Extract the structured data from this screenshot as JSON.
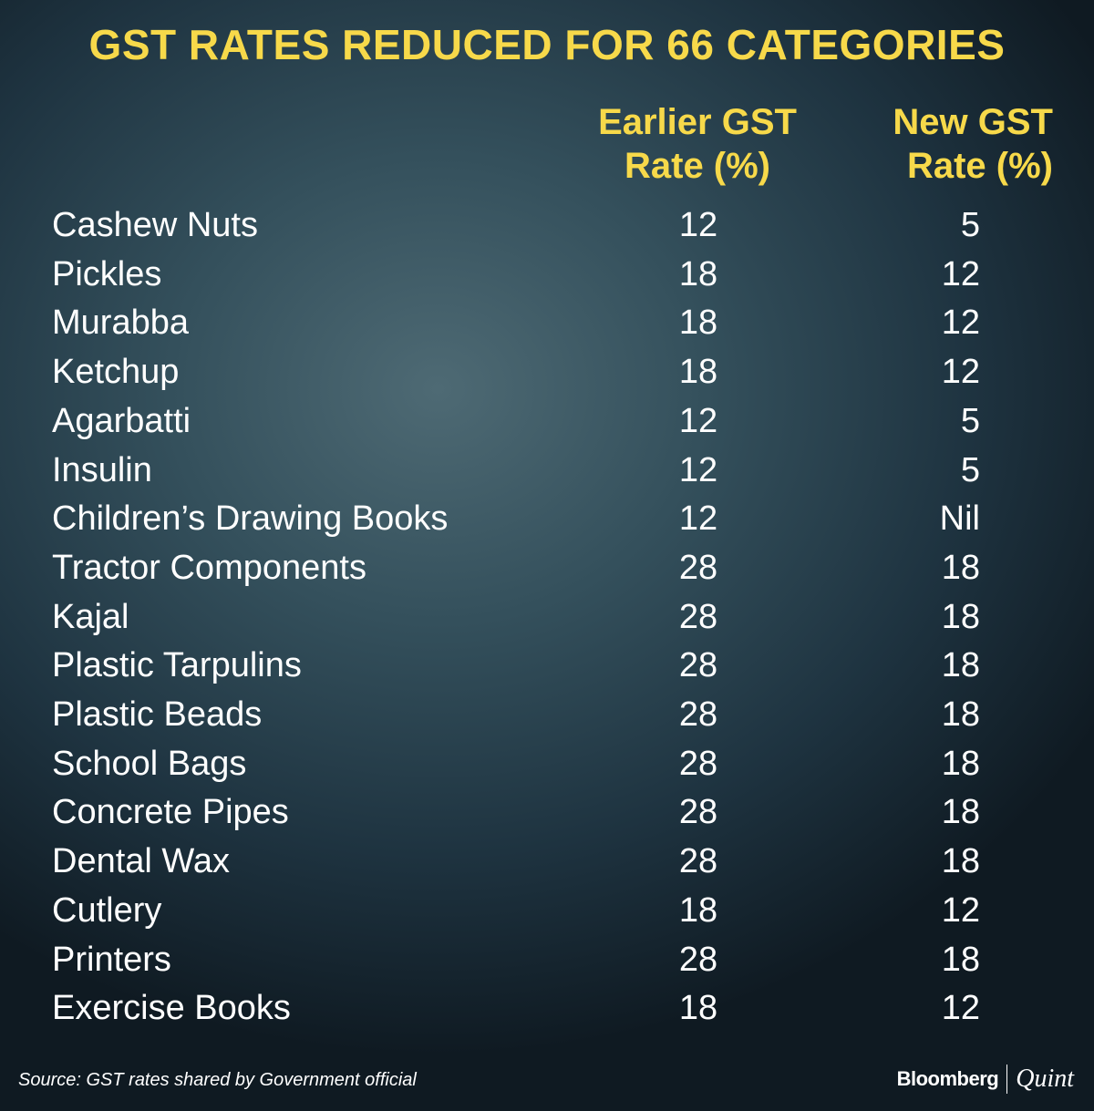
{
  "title": "GST RATES REDUCED FOR 66 CATEGORIES",
  "colors": {
    "accent": "#f7d94a",
    "text": "#ffffff",
    "background": "#2e4652"
  },
  "chart_data": {
    "type": "table",
    "title": "GST RATES REDUCED FOR 66 CATEGORIES",
    "columns": [
      "",
      "Earlier GST Rate (%)",
      "New GST Rate (%)"
    ],
    "header_lines": {
      "earlier": [
        "Earlier GST",
        "Rate (%)"
      ],
      "new": [
        "New GST",
        "Rate (%)"
      ]
    },
    "rows": [
      {
        "item": "Cashew Nuts",
        "earlier": "12",
        "new": "5"
      },
      {
        "item": "Pickles",
        "earlier": "18",
        "new": "12"
      },
      {
        "item": "Murabba",
        "earlier": "18",
        "new": "12"
      },
      {
        "item": "Ketchup",
        "earlier": "18",
        "new": "12"
      },
      {
        "item": "Agarbatti",
        "earlier": "12",
        "new": "5"
      },
      {
        "item": "Insulin",
        "earlier": "12",
        "new": "5"
      },
      {
        "item": "Children’s Drawing Books",
        "earlier": "12",
        "new": "Nil"
      },
      {
        "item": "Tractor Components",
        "earlier": "28",
        "new": "18"
      },
      {
        "item": "Kajal",
        "earlier": "28",
        "new": "18"
      },
      {
        "item": "Plastic Tarpulins",
        "earlier": "28",
        "new": "18"
      },
      {
        "item": "Plastic Beads",
        "earlier": "28",
        "new": "18"
      },
      {
        "item": "School Bags",
        "earlier": "28",
        "new": "18"
      },
      {
        "item": "Concrete Pipes",
        "earlier": "28",
        "new": "18"
      },
      {
        "item": "Dental Wax",
        "earlier": "28",
        "new": "18"
      },
      {
        "item": "Cutlery",
        "earlier": "18",
        "new": "12"
      },
      {
        "item": "Printers",
        "earlier": "28",
        "new": "18"
      },
      {
        "item": "Exercise Books",
        "earlier": "18",
        "new": "12"
      }
    ]
  },
  "footer": {
    "source": "Source: GST rates shared by Government official",
    "logo": {
      "part1": "Bloomberg",
      "part2": "Quint"
    }
  }
}
